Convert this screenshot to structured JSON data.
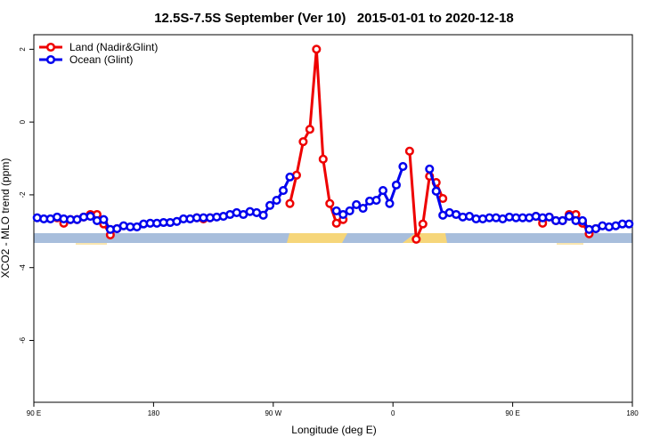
{
  "chart_data": {
    "type": "line",
    "title": "12.5S-7.5S September (Ver 10)   2015-01-01 to 2020-12-18",
    "xlabel": "Longitude (deg E)",
    "ylabel": "XCO2 - MLO trend (ppm)",
    "xlim": [
      90,
      540
    ],
    "ylim": [
      -7.7,
      2.4
    ],
    "xticks": [
      {
        "value": 90,
        "label": "90 E"
      },
      180,
      {
        "value": 270,
        "label": "90 W"
      },
      {
        "value": 360,
        "label": "0"
      },
      {
        "value": 450,
        "label": "90 E"
      },
      {
        "value": 540,
        "label": "180"
      }
    ],
    "yticks": [
      -6,
      -4,
      -2,
      0,
      2
    ],
    "legend": "top-left",
    "x": [
      92.5,
      97.5,
      102.5,
      107.5,
      112.5,
      117.5,
      122.5,
      127.5,
      132.5,
      137.5,
      142.5,
      147.5,
      152.5,
      157.5,
      162.5,
      167.5,
      172.5,
      177.5,
      182.5,
      187.5,
      192.5,
      197.5,
      202.5,
      207.5,
      212.5,
      217.5,
      222.5,
      227.5,
      232.5,
      237.5,
      242.5,
      247.5,
      252.5,
      257.5,
      262.5,
      267.5,
      272.5,
      277.5,
      282.5,
      287.5,
      292.5,
      297.5,
      302.5,
      307.5,
      312.5,
      317.5,
      322.5,
      327.5,
      332.5,
      337.5,
      342.5,
      347.5,
      352.5,
      357.5,
      362.5,
      367.5,
      372.5,
      377.5,
      382.5,
      387.5,
      392.5,
      397.5,
      402.5,
      407.5,
      412.5,
      417.5,
      422.5,
      427.5,
      432.5,
      437.5,
      442.5,
      447.5,
      452.5,
      457.5,
      462.5,
      467.5,
      472.5,
      477.5,
      482.5,
      487.5,
      492.5,
      497.5,
      502.5,
      507.5,
      512.5,
      517.5,
      522.5,
      527.5,
      532.5,
      537.5
    ],
    "series": [
      {
        "name": "Land (Nadir&Glint)",
        "color": "#ee0000",
        "values": [
          null,
          null,
          null,
          -2.63,
          -2.78,
          -2.68,
          -2.68,
          -2.61,
          -2.54,
          -2.54,
          -2.8,
          -3.1,
          -2.93,
          null,
          null,
          null,
          null,
          null,
          null,
          null,
          null,
          null,
          null,
          null,
          -2.63,
          -2.66,
          -2.63,
          null,
          null,
          null,
          null,
          null,
          null,
          null,
          null,
          null,
          null,
          null,
          -2.24,
          -1.46,
          -0.54,
          -0.2,
          2.0,
          -1.02,
          -2.24,
          -2.78,
          -2.68,
          null,
          null,
          null,
          null,
          null,
          null,
          null,
          null,
          null,
          -0.8,
          -3.22,
          -2.8,
          -1.49,
          -1.66,
          -2.1,
          null,
          null,
          null,
          null,
          null,
          null,
          null,
          null,
          null,
          null,
          null,
          null,
          null,
          -2.59,
          -2.78,
          -2.61,
          -2.71,
          -2.71,
          -2.54,
          -2.54,
          -2.78,
          -3.07,
          -2.93,
          null,
          null,
          null,
          null,
          null
        ]
      },
      {
        "name": "Ocean (Glint)",
        "color": "#0000ee",
        "values": [
          -2.63,
          -2.66,
          -2.66,
          -2.61,
          -2.66,
          -2.68,
          -2.68,
          -2.61,
          -2.59,
          -2.71,
          -2.68,
          -2.95,
          -2.93,
          -2.85,
          -2.88,
          -2.88,
          -2.8,
          -2.78,
          -2.78,
          -2.76,
          -2.76,
          -2.73,
          -2.66,
          -2.66,
          -2.63,
          -2.63,
          -2.63,
          -2.61,
          -2.59,
          -2.54,
          -2.49,
          -2.54,
          -2.46,
          -2.49,
          -2.56,
          -2.29,
          -2.15,
          -1.88,
          -1.51,
          null,
          null,
          null,
          null,
          null,
          null,
          -2.44,
          -2.54,
          -2.44,
          -2.27,
          -2.37,
          -2.17,
          -2.15,
          -1.88,
          -2.24,
          -1.73,
          -1.22,
          null,
          null,
          null,
          -1.29,
          -1.9,
          -2.56,
          -2.49,
          -2.54,
          -2.61,
          -2.59,
          -2.66,
          -2.66,
          -2.63,
          -2.63,
          -2.66,
          -2.61,
          -2.63,
          -2.63,
          -2.63,
          -2.59,
          -2.63,
          -2.61,
          -2.71,
          -2.71,
          -2.59,
          -2.71,
          -2.71,
          -2.95,
          -2.93,
          -2.85,
          -2.88,
          -2.85,
          -2.8,
          -2.8
        ]
      }
    ]
  }
}
